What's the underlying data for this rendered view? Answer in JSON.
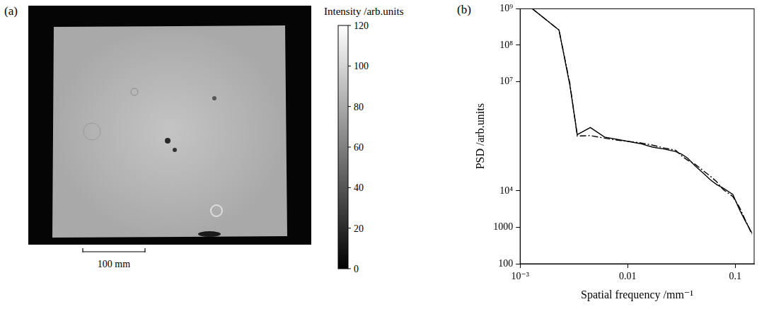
{
  "image_panel": {
    "letter": "(a)",
    "scale_bar": "100 mm",
    "colorbar": {
      "label": "Intensity /arb.units",
      "range": [
        0,
        120
      ],
      "ticks": [
        0,
        20,
        40,
        60,
        80,
        100,
        120
      ]
    }
  },
  "chart_data": {
    "letter": "(b)",
    "type": "line",
    "x_label": "Spatial frequency /mm⁻¹",
    "y_label": "PSD /arb.units",
    "log": true,
    "grid": false,
    "xlim": [
      0.001,
      0.15
    ],
    "xticks": [
      {
        "value": 0.001,
        "label": "10⁻³"
      },
      0.01,
      0.1
    ],
    "ylim": [
      100,
      1000000000
    ],
    "yticks": [
      100,
      1000,
      {
        "value": 10000,
        "label": "10⁴"
      },
      {
        "value": 10000000,
        "label": "10⁷"
      },
      {
        "value": 100000000,
        "label": "10⁸"
      },
      {
        "value": 1000000000,
        "label": "10⁹"
      }
    ],
    "x": [
      0.0013,
      0.0023,
      0.0029,
      0.0034,
      0.0045,
      0.0061,
      0.0086,
      0.013,
      0.017,
      0.022,
      0.028,
      0.032,
      0.036,
      0.042,
      0.051,
      0.059,
      0.067,
      0.077,
      0.095,
      0.11,
      0.124,
      0.143
    ],
    "series": [
      {
        "color": "#000000",
        "line_style": "solid",
        "values": [
          1000000000,
          260000000,
          8000000,
          350000,
          550000,
          300000,
          250000,
          200000,
          160000,
          140000,
          120000,
          100000,
          80000,
          50000,
          30000,
          20000,
          15000,
          12000,
          8000,
          3000,
          1500,
          700
        ]
      },
      {
        "color": "#000000",
        "line_style": "dashdot",
        "values": [
          1000000000,
          260000000,
          9000000,
          320000,
          330000,
          280000,
          240000,
          210000,
          180000,
          150000,
          130000,
          90000,
          70000,
          55000,
          35000,
          25000,
          18000,
          11000,
          7000,
          3500,
          1600,
          650
        ]
      }
    ]
  }
}
